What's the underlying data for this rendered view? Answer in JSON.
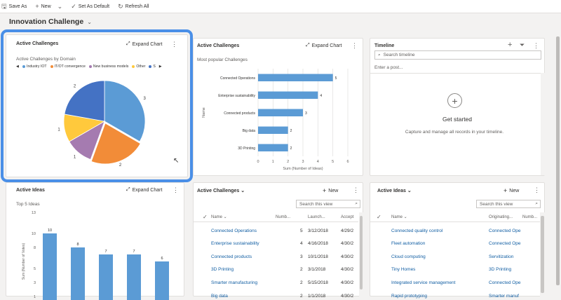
{
  "toolbar": {
    "save_as": "Save As",
    "new": "New",
    "set_default": "Set As Default",
    "refresh": "Refresh All"
  },
  "page": {
    "title": "Innovation Challenge"
  },
  "card1": {
    "title": "Active Challenges",
    "expand": "Expand Chart",
    "subtitle": "Active Challenges by Domain",
    "legend": [
      "Industry IOT",
      "IT/OT convergence",
      "New business models",
      "Other",
      "S"
    ]
  },
  "card2": {
    "title": "Active Challenges",
    "expand": "Expand Chart",
    "subtitle": "Most popular Challenges"
  },
  "card3": {
    "title": "Timeline",
    "search_placeholder": "Search timeline",
    "post_placeholder": "Enter a post...",
    "empty_title": "Get started",
    "empty_text": "Capture and manage all records in your timeline."
  },
  "card4": {
    "title": "Active Ideas",
    "expand": "Expand Chart",
    "subtitle": "Top 5 Ideas"
  },
  "card5": {
    "title": "Active Challenges",
    "new": "New",
    "search_placeholder": "Search this view",
    "columns": [
      "Name",
      "Numb...",
      "Launch...",
      "Accept"
    ],
    "rows": [
      [
        "Connected Operations",
        "5",
        "3/12/2018",
        "4/29/2"
      ],
      [
        "Enterprise sustainability",
        "4",
        "4/16/2018",
        "4/30/2"
      ],
      [
        "Connected products",
        "3",
        "10/1/2018",
        "4/30/2"
      ],
      [
        "3D Printing",
        "2",
        "3/1/2018",
        "4/30/2"
      ],
      [
        "Smarter manufacturing",
        "2",
        "5/15/2018",
        "4/30/2"
      ],
      [
        "Big data",
        "2",
        "1/1/2018",
        "4/30/2"
      ]
    ]
  },
  "card6": {
    "title": "Active Ideas",
    "new": "New",
    "search_placeholder": "Search this view",
    "columns": [
      "Name",
      "Originating...",
      "Numb..."
    ],
    "rows": [
      [
        "Connected quality control",
        "Connected Ope"
      ],
      [
        "Fleet automation",
        "Connected Ope"
      ],
      [
        "Cloud computing",
        "Servitization"
      ],
      [
        "Tiny Homes",
        "3D Printing"
      ],
      [
        "Integrated service management",
        "Connected Ope"
      ],
      [
        "Rapid prototyping",
        "Smarter manuf"
      ]
    ]
  },
  "chart_data": [
    {
      "type": "pie",
      "title": "Active Challenges by Domain",
      "categories": [
        "Industry IOT",
        "IT/OT convergence",
        "New business models",
        "Other",
        "S"
      ],
      "values": [
        3,
        2,
        1,
        1,
        2
      ],
      "colors": [
        "#5b9bd5",
        "#f28c38",
        "#a57bb0",
        "#ffc93c",
        "#4472c4"
      ]
    },
    {
      "type": "bar",
      "title": "Most popular Challenges",
      "orientation": "horizontal",
      "categories": [
        "Connected Operations",
        "Enterprise sustainability",
        "Connected products",
        "Big data",
        "3D Printing"
      ],
      "values": [
        5,
        4,
        3,
        2,
        2
      ],
      "xlabel": "Sum (Number of Ideas)",
      "ylabel": "Name",
      "xlim": [
        0,
        6
      ],
      "xticks": [
        "0",
        "1",
        "2",
        "3",
        "4",
        "5",
        "6"
      ],
      "color": "#5b9bd5"
    },
    {
      "type": "bar",
      "title": "Top 5 Ideas",
      "values": [
        10,
        8,
        7,
        7,
        6
      ],
      "ylabel": "Sum (Number of Votes)",
      "ylim": [
        1,
        13
      ],
      "yticks": [
        "13",
        "10",
        "8",
        "5",
        "3",
        "1"
      ],
      "color": "#5b9bd5"
    }
  ]
}
